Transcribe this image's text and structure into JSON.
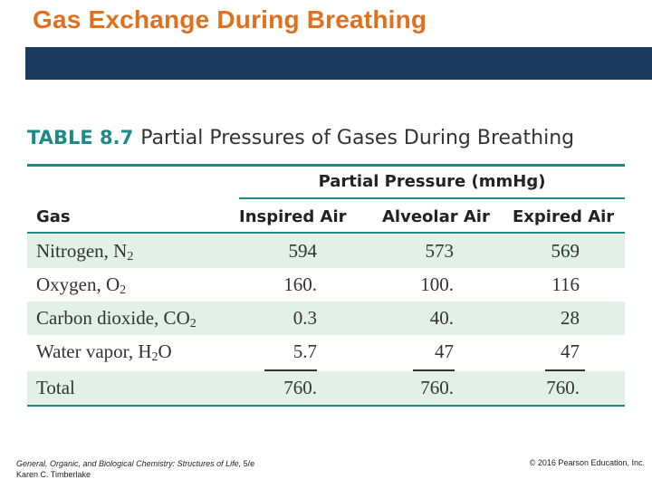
{
  "slide": {
    "title": "Gas Exchange During Breathing"
  },
  "table": {
    "number": "TABLE 8.7",
    "caption": "Partial Pressures of Gases During Breathing",
    "group_header": "Partial Pressure (mmHg)",
    "columns": [
      "Gas",
      "Inspired Air",
      "Alveolar Air",
      "Expired Air"
    ],
    "rows": [
      {
        "gas_prefix": "Nitrogen, N",
        "gas_sub": "2",
        "gas_suffix": "",
        "inspired": "594",
        "alveolar": "573",
        "expired": "569"
      },
      {
        "gas_prefix": "Oxygen, O",
        "gas_sub": "2",
        "gas_suffix": "",
        "inspired": "160.",
        "alveolar": "100.",
        "expired": "116"
      },
      {
        "gas_prefix": "Carbon dioxide, CO",
        "gas_sub": "2",
        "gas_suffix": "",
        "inspired": "0.3",
        "alveolar": "40.",
        "expired": "28"
      },
      {
        "gas_prefix": "Water vapor, H",
        "gas_sub": "2",
        "gas_suffix": "O",
        "inspired": "5.7",
        "alveolar": "47",
        "expired": "47"
      },
      {
        "gas_prefix": "Total",
        "gas_sub": "",
        "gas_suffix": "",
        "inspired": "760.",
        "alveolar": "760.",
        "expired": "760."
      }
    ]
  },
  "footer": {
    "book": "General, Organic, and Biological Chemistry: Structures of Life,",
    "edition": " 5/e",
    "author": "Karen C. Timberlake",
    "copyright": "© 2016 Pearson Education, Inc."
  },
  "colors": {
    "title": "#e0701e",
    "bar": "#1c3a5e",
    "accent": "#1c8a86",
    "row_shade": "#e2f0e8"
  }
}
